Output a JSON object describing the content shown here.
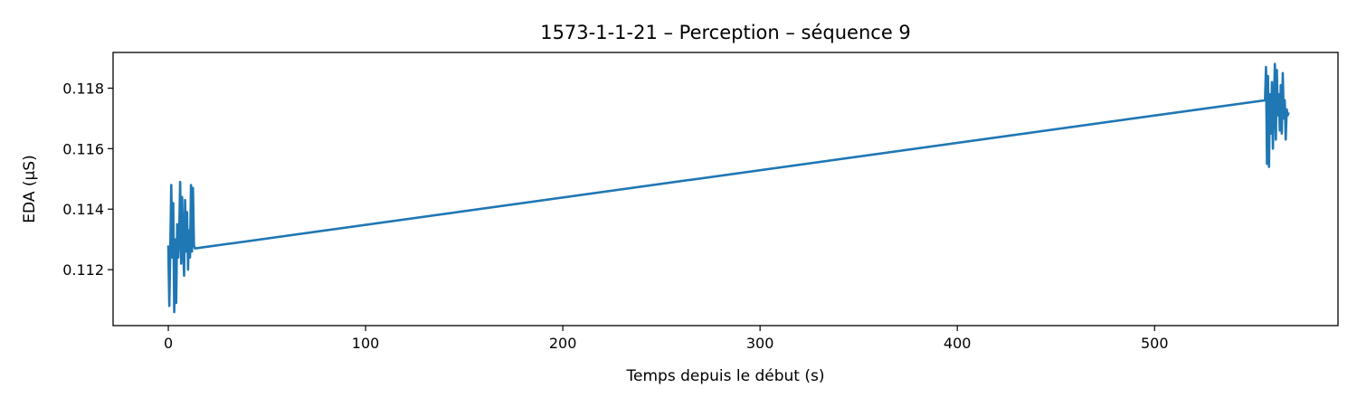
{
  "chart_data": {
    "type": "line",
    "title": "1573-1-1-21 – Perception – séquence 9",
    "xlabel": "Temps depuis le début (s)",
    "ylabel": "EDA (µS)",
    "xlim": [
      -28,
      593
    ],
    "ylim": [
      0.11015,
      0.11918
    ],
    "xticks": [
      0,
      100,
      200,
      300,
      400,
      500
    ],
    "yticks": [
      0.112,
      0.114,
      0.116,
      0.118
    ],
    "ytick_labels": [
      "0.112",
      "0.114",
      "0.116",
      "0.118"
    ],
    "grid": false,
    "legend": "none",
    "color": "#1f77b4",
    "series": [
      {
        "x": [
          0.0,
          0.5,
          1.0,
          1.5,
          2.0,
          2.5,
          3.0,
          3.5,
          4.0,
          4.5,
          5.0,
          5.5,
          6.0,
          6.5,
          7.0,
          7.5,
          8.0,
          8.5,
          9.0,
          9.5,
          10.0,
          10.5,
          11.0,
          11.5,
          12.0,
          12.5,
          13.0,
          13.5,
          556.0,
          556.5,
          557.0,
          557.5,
          558.0,
          558.5,
          559.0,
          559.5,
          560.0,
          560.5,
          561.0,
          561.5,
          562.0,
          562.5,
          563.0,
          563.5,
          564.0,
          564.5,
          565.0,
          565.5,
          566.0,
          566.5,
          567.0,
          567.5,
          568.0
        ],
        "y": [
          0.1128,
          0.1108,
          0.1127,
          0.1148,
          0.1124,
          0.1142,
          0.1106,
          0.113,
          0.1109,
          0.1135,
          0.1124,
          0.1131,
          0.1149,
          0.1122,
          0.1144,
          0.1128,
          0.1118,
          0.1143,
          0.1126,
          0.1139,
          0.112,
          0.1133,
          0.1124,
          0.1148,
          0.1126,
          0.1147,
          0.1128,
          0.1127,
          0.1176,
          0.1187,
          0.1155,
          0.1184,
          0.1154,
          0.1178,
          0.1165,
          0.1182,
          0.116,
          0.1175,
          0.1188,
          0.1163,
          0.1186,
          0.1171,
          0.1178,
          0.1166,
          0.1181,
          0.1165,
          0.1185,
          0.117,
          0.1176,
          0.1163,
          0.1173,
          0.1171,
          0.1172
        ]
      }
    ]
  }
}
